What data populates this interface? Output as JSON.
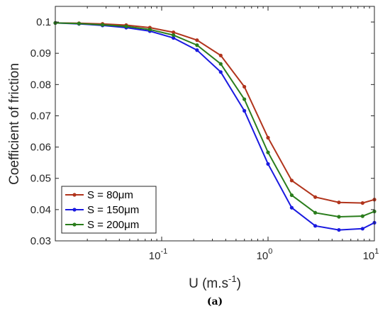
{
  "chart_data": {
    "type": "line",
    "title": "",
    "xlabel": "U (m.s",
    "xlabel_sup": "-1",
    "xlabel_close": ")",
    "ylabel": "Coefficient of friction",
    "caption": "(a)",
    "xscale": "log",
    "xlim": [
      0.01,
      10
    ],
    "ylim": [
      0.03,
      0.105
    ],
    "xticks": [
      {
        "value": 0.1,
        "base": "10",
        "exp": "-1"
      },
      {
        "value": 1,
        "base": "10",
        "exp": "0"
      },
      {
        "value": 10,
        "base": "10",
        "exp": "1"
      }
    ],
    "yticks": [
      {
        "value": 0.03,
        "label": "0.03"
      },
      {
        "value": 0.04,
        "label": "0.04"
      },
      {
        "value": 0.05,
        "label": "0.05"
      },
      {
        "value": 0.06,
        "label": "0.06"
      },
      {
        "value": 0.07,
        "label": "0.07"
      },
      {
        "value": 0.08,
        "label": "0.08"
      },
      {
        "value": 0.09,
        "label": "0.09"
      },
      {
        "value": 0.1,
        "label": "0.1"
      }
    ],
    "grid": false,
    "legend_position": "bottom-left",
    "x": [
      0.01,
      0.0167,
      0.0278,
      0.0464,
      0.0774,
      0.129,
      0.215,
      0.359,
      0.599,
      1.0,
      1.67,
      2.78,
      4.64,
      7.74,
      10.0
    ],
    "series": [
      {
        "name": "S = 80μm",
        "color": "#b1341c",
        "values": [
          0.0997,
          0.0996,
          0.0994,
          0.099,
          0.0982,
          0.0967,
          0.0942,
          0.0893,
          0.0793,
          0.063,
          0.0493,
          0.044,
          0.0423,
          0.0421,
          0.0432
        ]
      },
      {
        "name": "S = 150μm",
        "color": "#1a1ae0",
        "values": [
          0.0997,
          0.0994,
          0.0989,
          0.0982,
          0.0971,
          0.0949,
          0.091,
          0.084,
          0.0716,
          0.0546,
          0.0406,
          0.0348,
          0.0335,
          0.0339,
          0.0358
        ]
      },
      {
        "name": "S = 200μm",
        "color": "#2a7d1c",
        "values": [
          0.0997,
          0.0995,
          0.0991,
          0.0986,
          0.0976,
          0.0958,
          0.0926,
          0.0866,
          0.0753,
          0.0583,
          0.0446,
          0.039,
          0.0377,
          0.0379,
          0.0394
        ]
      }
    ]
  }
}
